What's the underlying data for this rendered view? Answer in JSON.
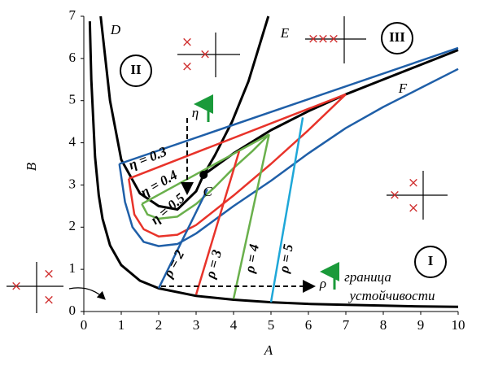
{
  "chart_data": {
    "type": "line",
    "x_label": "A",
    "y_label": "B",
    "xlim": [
      0,
      10
    ],
    "xticks": [
      0,
      1,
      2,
      3,
      4,
      5,
      6,
      7,
      8,
      9,
      10
    ],
    "ylim": [
      0,
      7
    ],
    "yticks": [
      0,
      1,
      2,
      3,
      4,
      5,
      6,
      7
    ],
    "series": [
      {
        "color": "#000000",
        "line_width": 3,
        "x": [
          0.16,
          0.2,
          0.3,
          0.4,
          0.5,
          0.7,
          1,
          1.5,
          2,
          3,
          4,
          5,
          6,
          7,
          8,
          9,
          10
        ],
        "values": [
          6.88,
          5.5,
          3.67,
          2.75,
          2.2,
          1.57,
          1.1,
          0.73,
          0.55,
          0.37,
          0.28,
          0.22,
          0.18,
          0.16,
          0.14,
          0.12,
          0.11
        ]
      },
      {
        "color": "#000000",
        "line_width": 3,
        "x": [
          0.45,
          0.7,
          1.0,
          1.5,
          2.0,
          2.5,
          3.0,
          3.2,
          3.5,
          3.96,
          4.4,
          4.93
        ],
        "values": [
          7,
          5,
          3.6,
          2.8,
          2.5,
          2.42,
          2.85,
          3.24,
          3.7,
          4.5,
          5.46,
          7
        ]
      },
      {
        "color": "#000000",
        "line_width": 3,
        "x": [
          3.2,
          4,
          5,
          6,
          7,
          8,
          9,
          10
        ],
        "values": [
          3.24,
          3.75,
          4.3,
          4.75,
          5.15,
          5.5,
          5.85,
          6.2
        ]
      },
      {
        "color": "#1f5fa8",
        "line_width": 2.5,
        "x": [
          0.95,
          10
        ],
        "values": [
          3.5,
          6.25
        ]
      },
      {
        "color": "#1f5fa8",
        "line_width": 2.5,
        "x": [
          0.95,
          1.1,
          1.3,
          1.6,
          2,
          2.5,
          3,
          4,
          5,
          6,
          7,
          8,
          9,
          10
        ],
        "values": [
          3.5,
          2.6,
          2.0,
          1.65,
          1.55,
          1.6,
          1.85,
          2.5,
          3.1,
          3.75,
          4.35,
          4.85,
          5.3,
          5.75
        ]
      },
      {
        "color": "#e8332a",
        "line_width": 2.5,
        "x": [
          1.2,
          7
        ],
        "values": [
          3.15,
          5.15
        ]
      },
      {
        "color": "#e8332a",
        "line_width": 2.5,
        "x": [
          1.2,
          1.35,
          1.6,
          2,
          2.5,
          3,
          4,
          5,
          6,
          7
        ],
        "values": [
          3.15,
          2.3,
          1.95,
          1.78,
          1.82,
          2.05,
          2.75,
          3.5,
          4.3,
          5.15
        ]
      },
      {
        "color": "#6ab04c",
        "line_width": 2.5,
        "x": [
          1.55,
          4.95
        ],
        "values": [
          2.55,
          4.2
        ]
      },
      {
        "color": "#6ab04c",
        "line_width": 2.5,
        "x": [
          1.55,
          1.7,
          2,
          2.5,
          3,
          3.5,
          4,
          4.5,
          4.95
        ],
        "values": [
          2.55,
          2.3,
          2.2,
          2.25,
          2.55,
          2.95,
          3.4,
          3.8,
          4.2
        ]
      },
      {
        "color": "#1f5fa8",
        "line_width": 2.5,
        "x": [
          2,
          3.3
        ],
        "values": [
          0.55,
          2.9
        ]
      },
      {
        "color": "#e8332a",
        "line_width": 2.5,
        "x": [
          3,
          4.15
        ],
        "values": [
          0.4,
          3.8
        ]
      },
      {
        "color": "#6ab04c",
        "line_width": 2.5,
        "x": [
          4,
          4.95
        ],
        "values": [
          0.3,
          4.2
        ]
      },
      {
        "color": "#1ea7d8",
        "line_width": 2.5,
        "x": [
          5,
          5.85
        ],
        "values": [
          0.22,
          4.6
        ]
      }
    ],
    "points": [
      {
        "label": "C",
        "x": 3.2,
        "y": 3.24
      }
    ],
    "annotations": [
      "D",
      "E",
      "F",
      "η = 0.3",
      "η = 0.4",
      "η = 0.5",
      "ρ = 2",
      "ρ = 3",
      "ρ = 4",
      "ρ = 5",
      "η",
      "ρ",
      "граница",
      "устойчивости",
      "I",
      "II",
      "III"
    ]
  }
}
